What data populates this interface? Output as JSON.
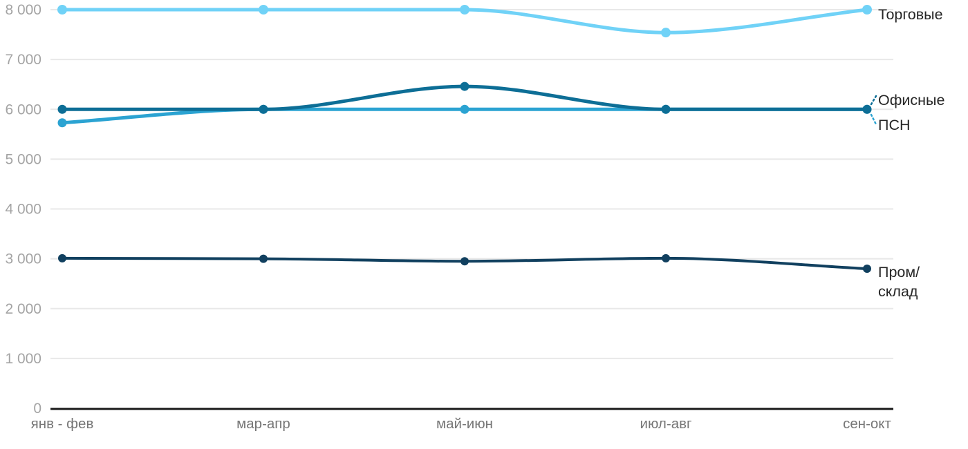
{
  "chart_data": {
    "type": "line",
    "categories": [
      "янв - фев",
      "мар-апр",
      "май-июн",
      "июл-авг",
      "сен-окт"
    ],
    "series": [
      {
        "key": "torgovye",
        "name": "Торговые",
        "label_lines": [
          "Торговые"
        ],
        "color": "#70d2f7",
        "values": [
          8000,
          8000,
          8000,
          7540,
          8000
        ]
      },
      {
        "key": "psn",
        "name": "ПСН",
        "label_lines": [
          "ПСН"
        ],
        "color": "#2ba3d2",
        "values": [
          5730,
          6000,
          6000,
          6000,
          6000
        ]
      },
      {
        "key": "ofisnye",
        "name": "Офисные",
        "label_lines": [
          "Офисные"
        ],
        "color": "#0d6e96",
        "values": [
          6000,
          6000,
          6460,
          6000,
          6000
        ]
      },
      {
        "key": "prom-sklad",
        "name": "Пром/склад",
        "label_lines": [
          "Пром/",
          "склад"
        ],
        "color": "#11405f",
        "values": [
          3010,
          3000,
          2950,
          3010,
          2800
        ]
      }
    ],
    "ylim": [
      0,
      8000
    ],
    "ytick_step": 1000,
    "ytick_labels": [
      "0",
      "1 000",
      "2 000",
      "3 000",
      "4 000",
      "5 000",
      "6 000",
      "7 000",
      "8 000"
    ],
    "title": "",
    "xlabel": "",
    "ylabel": "",
    "grid": "horizontal",
    "legend_position": "right-end-labels"
  },
  "colors": {
    "grid": "#e8e8e8",
    "axis": "#191919",
    "ytick_text": "#a4a4a4",
    "xtick_text": "#767676",
    "label_text": "#262626",
    "background": "#ffffff"
  }
}
